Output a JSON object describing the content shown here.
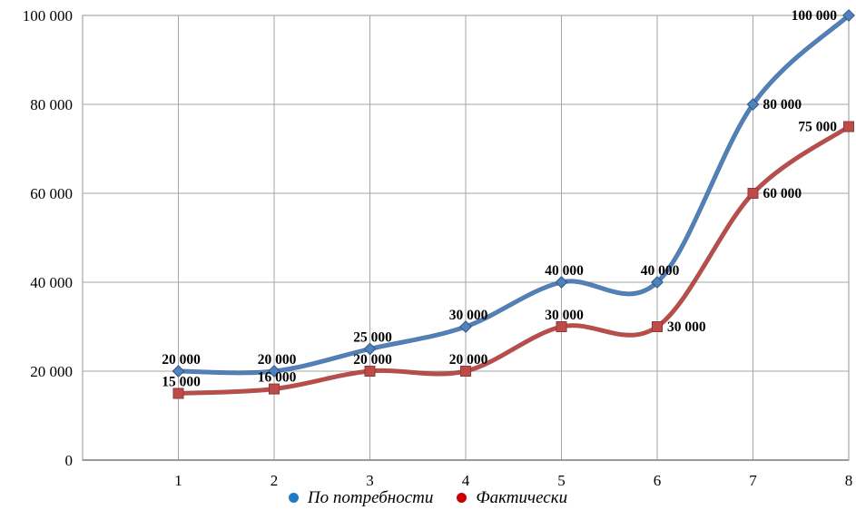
{
  "chart_data": {
    "type": "line",
    "title": "",
    "xlabel": "",
    "ylabel": "",
    "categories": [
      1,
      2,
      3,
      4,
      5,
      6,
      7,
      8
    ],
    "x_ticks": [
      "1",
      "2",
      "3",
      "4",
      "5",
      "6",
      "7",
      "8"
    ],
    "y_ticks": [
      "0",
      "20 000",
      "40 000",
      "60 000",
      "80 000",
      "100 000"
    ],
    "y_tick_values": [
      0,
      20000,
      40000,
      60000,
      80000,
      100000
    ],
    "ylim": [
      0,
      100000
    ],
    "xlim": [
      0,
      8
    ],
    "grid": true,
    "smoothed_lines": true,
    "legend_position": "bottom",
    "series": [
      {
        "name": "По потребности",
        "values": [
          20000,
          20000,
          25000,
          30000,
          40000,
          40000,
          80000,
          100000
        ],
        "labels": [
          "20 000",
          "20 000",
          "25 000",
          "30 000",
          "40 000",
          "40 000",
          "80 000",
          "100 000"
        ],
        "label_placement": [
          "above",
          "above",
          "above",
          "above",
          "above",
          "above",
          "right",
          "left"
        ],
        "marker": "diamond",
        "line_color": "#4F81BD",
        "line_shade_color": "#38608F",
        "marker_fill": "#4F81BD",
        "marker_stroke": "#2E5680",
        "legend_bullet_color": "#1F7BC2"
      },
      {
        "name": "Фактически",
        "values": [
          15000,
          16000,
          20000,
          20000,
          30000,
          30000,
          60000,
          75000
        ],
        "labels": [
          "15 000",
          "16 000",
          "20 000",
          "20 000",
          "30 000",
          "30 000",
          "60 000",
          "75 000"
        ],
        "label_placement": [
          "above",
          "above",
          "above",
          "above",
          "above",
          "right",
          "right",
          "left"
        ],
        "marker": "square",
        "line_color": "#BE4B48",
        "line_shade_color": "#8E3A37",
        "marker_fill": "#BE4B48",
        "marker_stroke": "#8E3A37",
        "legend_bullet_color": "#CC0000"
      }
    ],
    "colors": {
      "grid_line": "#A6A6A6",
      "plot_border": "#A6A6A6",
      "axis_line": "#808080",
      "tick_label": "#000000",
      "data_label": "#000000",
      "background": "#FFFFFF"
    }
  }
}
